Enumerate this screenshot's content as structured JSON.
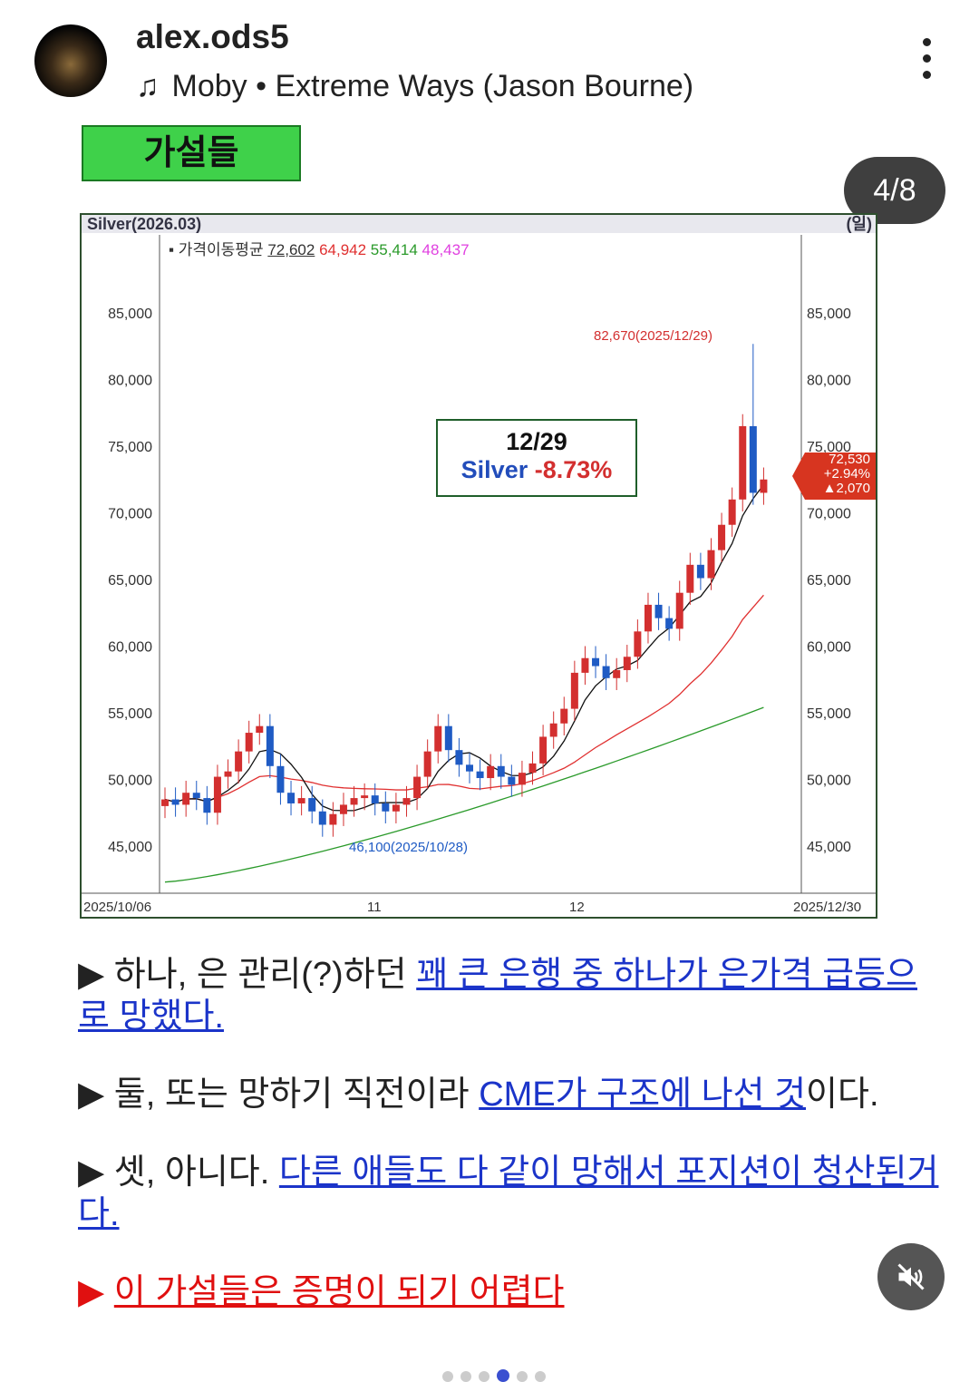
{
  "post": {
    "username": "alex.ods5",
    "music_artist": "Moby",
    "music_separator": "•",
    "music_title": "Extreme Ways (Jason Bourne)",
    "counter": "4/8",
    "tag": "가설들"
  },
  "chart_header": {
    "title": "Silver(2026.03)",
    "period": "(일)",
    "legend_label": "가격이동평균",
    "ma_values": [
      "72,602",
      "64,942",
      "55,414",
      "48,437"
    ],
    "ma_colors": [
      "#333333",
      "#e03030",
      "#2a9a2a",
      "#e040e0"
    ]
  },
  "annotation": {
    "date": "12/29",
    "name": "Silver",
    "change": "-8.73%"
  },
  "price_tag": {
    "price": "72,530",
    "pct": "+2.94%",
    "diff": "▲2,070"
  },
  "chart_data": {
    "type": "candlestick",
    "title": "Silver(2026.03)",
    "x_labels": [
      "2025/10/06",
      "11",
      "12",
      "2025/12/30"
    ],
    "y_ticks": [
      45000,
      50000,
      55000,
      60000,
      65000,
      70000,
      75000,
      80000,
      85000
    ],
    "y_tick_labels": [
      "45,000",
      "50,000",
      "55,000",
      "60,000",
      "65,000",
      "70,000",
      "75,000",
      "80,000",
      "85,000"
    ],
    "ylim": [
      42000,
      89000
    ],
    "closes": [
      48.5,
      48.1,
      49.0,
      48.6,
      47.5,
      50.2,
      50.6,
      52.1,
      53.5,
      54.0,
      51.0,
      49.0,
      48.2,
      48.6,
      47.6,
      46.6,
      47.4,
      48.1,
      48.6,
      48.8,
      48.2,
      47.6,
      48.1,
      48.6,
      50.2,
      52.1,
      54.0,
      52.2,
      51.1,
      50.6,
      50.1,
      51.0,
      50.2,
      49.6,
      50.5,
      51.2,
      53.2,
      54.2,
      55.3,
      58.0,
      59.1,
      58.5,
      57.6,
      58.2,
      59.2,
      61.1,
      63.1,
      62.1,
      61.3,
      64.0,
      66.1,
      65.1,
      67.2,
      69.1,
      71.0,
      76.5,
      71.5,
      72.5
    ],
    "ma_green_endpoints": [
      42.3,
      55.4
    ],
    "high_annotation": "82,670(2025/12/29)",
    "low_annotation": "46,100(2025/10/28)"
  },
  "bullets": [
    {
      "marker": "▶",
      "plain": "하나, 은 관리(?)하던 ",
      "link": "꽤 큰 은행 중 하나가 은가격 급등으로 망했다.",
      "tail": ""
    },
    {
      "marker": "▶",
      "plain": "둘, 또는 망하기 직전이라 ",
      "link": "CME가 구조에 나선 것",
      "tail": "이다."
    },
    {
      "marker": "▶",
      "plain": "셋, 아니다. ",
      "link": "다른 애들도 다 같이 망해서 포지션이 청산된거다.",
      "tail": ""
    },
    {
      "marker": "▶",
      "plain": "",
      "link": "이 가설들은 증명이 되기 어렵다",
      "tail": ""
    }
  ]
}
